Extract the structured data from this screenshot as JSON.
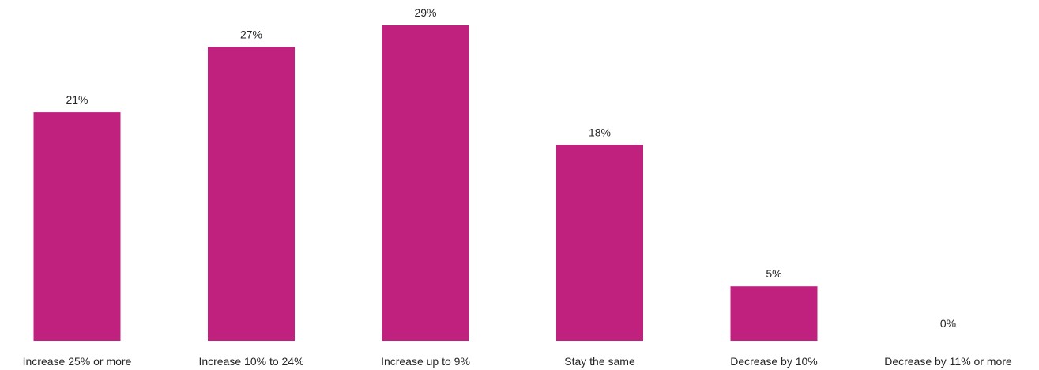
{
  "chart_data": {
    "type": "bar",
    "categories": [
      "Increase 25% or more",
      "Increase 10% to 24%",
      "Increase up to 9%",
      "Stay the same",
      "Decrease by 10%",
      "Decrease by 11% or more"
    ],
    "values": [
      21,
      27,
      29,
      18,
      5,
      0
    ],
    "data_labels": [
      "21%",
      "27%",
      "29%",
      "18%",
      "5%",
      "0%"
    ],
    "value_unit": "%",
    "ylim": [
      0,
      29
    ],
    "grid": false,
    "legend": "none",
    "axes_visible": false,
    "colors": {
      "bar": "#c0207e",
      "text": "#262626",
      "background": "#ffffff"
    }
  }
}
